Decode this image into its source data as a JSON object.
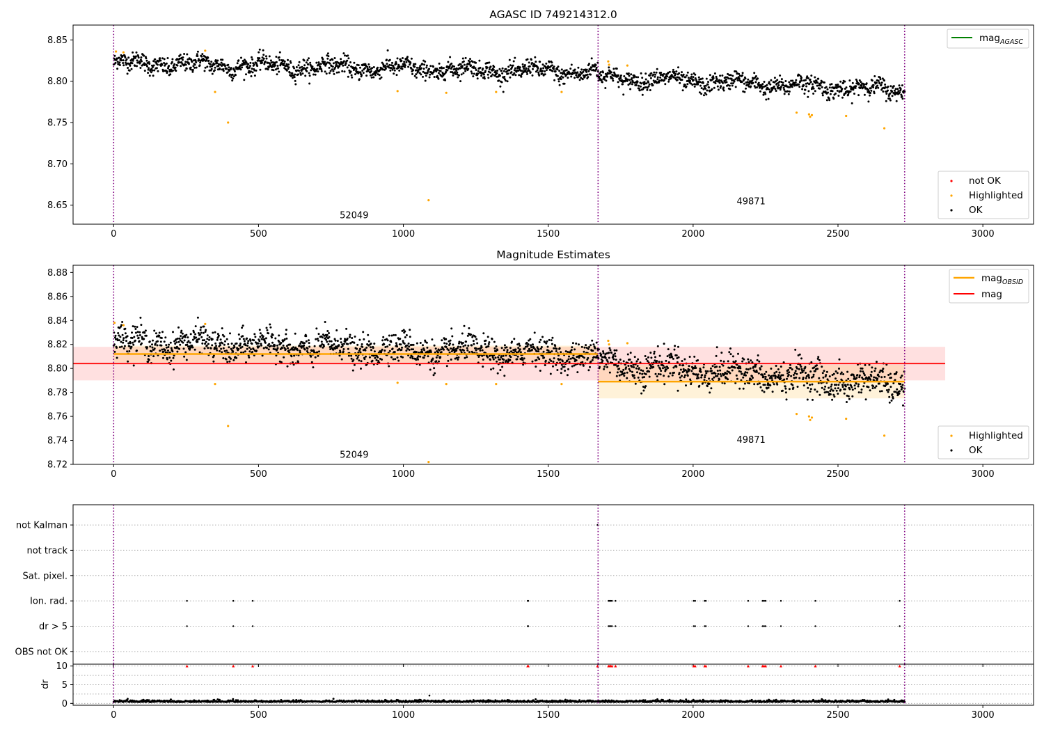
{
  "chart_data": [
    {
      "panel": "top",
      "type": "scatter",
      "title": "AGASC ID 749214312.0",
      "xlim": [
        -140,
        3175
      ],
      "ylim": [
        8.627,
        8.868
      ],
      "xticks": [
        0,
        500,
        1000,
        1500,
        2000,
        2500,
        3000
      ],
      "yticks": [
        8.65,
        8.7,
        8.75,
        8.8,
        8.85
      ],
      "ytick_labels": [
        "8.65",
        "8.70",
        "8.75",
        "8.80",
        "8.85"
      ],
      "obs_boundaries": [
        0,
        1672,
        2730
      ],
      "obs_labels": [
        {
          "text": "52049",
          "x": 830,
          "y": 8.634
        },
        {
          "text": "49871",
          "x": 2200,
          "y": 8.651
        }
      ],
      "legend_upper": [
        {
          "label": "mag",
          "sub": "AGASC",
          "color": "#008000"
        }
      ],
      "legend_lower": [
        {
          "label": "not OK",
          "color": "#ff0000"
        },
        {
          "label": "Highlighted",
          "color": "#ffa500"
        },
        {
          "label": "OK",
          "color": "#000000"
        }
      ],
      "series": [
        {
          "name": "OK",
          "segments": [
            {
              "x_start": 0,
              "x_end": 1672,
              "y_start": 8.822,
              "y_end": 8.811,
              "spread": 0.007,
              "count": 1300
            },
            {
              "x_start": 1672,
              "x_end": 2730,
              "y_start": 8.805,
              "y_end": 8.789,
              "spread": 0.007,
              "count": 800
            }
          ]
        },
        {
          "name": "Highlighted",
          "x": [
            8,
            34,
            316,
            350,
            395,
            980,
            1087,
            1148,
            1320,
            1546,
            1707,
            1710,
            1773,
            2357,
            2400,
            2404,
            2410,
            2528,
            2660
          ],
          "y": [
            8.836,
            8.835,
            8.837,
            8.787,
            8.75,
            8.788,
            8.656,
            8.786,
            8.787,
            8.787,
            8.824,
            8.82,
            8.819,
            8.762,
            8.76,
            8.757,
            8.759,
            8.758,
            8.743
          ]
        }
      ]
    },
    {
      "panel": "middle",
      "type": "scatter",
      "title": "Magnitude Estimates",
      "xlim": [
        -140,
        3175
      ],
      "ylim": [
        8.72,
        8.886
      ],
      "xticks": [
        0,
        500,
        1000,
        1500,
        2000,
        2500,
        3000
      ],
      "yticks": [
        8.72,
        8.74,
        8.76,
        8.78,
        8.8,
        8.82,
        8.84,
        8.86,
        8.88
      ],
      "ytick_labels": [
        "8.72",
        "8.74",
        "8.76",
        "8.78",
        "8.80",
        "8.82",
        "8.84",
        "8.86",
        "8.88"
      ],
      "obs_boundaries": [
        0,
        1672,
        2730
      ],
      "obs_labels": [
        {
          "text": "52049",
          "x": 830,
          "y": 8.7255
        },
        {
          "text": "49871",
          "x": 2200,
          "y": 8.738
        }
      ],
      "legend_upper": [
        {
          "label": "mag",
          "sub": "OBSID",
          "color": "#ffa500"
        },
        {
          "label": "mag",
          "sub": "",
          "color": "#ff0000"
        }
      ],
      "legend_lower": [
        {
          "label": "Highlighted",
          "color": "#ffa500"
        },
        {
          "label": "OK",
          "color": "#000000"
        }
      ],
      "mag": {
        "value": 8.804,
        "lo": 8.79,
        "hi": 8.818,
        "x_start": -140,
        "x_end": 2870
      },
      "mag_obsid": [
        {
          "x_start": 0,
          "x_end": 1672,
          "value": 8.812,
          "lo": 8.805,
          "hi": 8.819
        },
        {
          "x_start": 1672,
          "x_end": 2730,
          "value": 8.789,
          "lo": 8.775,
          "hi": 8.803
        }
      ],
      "series": [
        {
          "name": "OK",
          "segments": [
            {
              "x_start": 0,
              "x_end": 1672,
              "y_start": 8.822,
              "y_end": 8.811,
              "spread": 0.008,
              "count": 1300
            },
            {
              "x_start": 1672,
              "x_end": 2730,
              "y_start": 8.805,
              "y_end": 8.786,
              "spread": 0.009,
              "count": 800
            }
          ]
        },
        {
          "name": "Highlighted",
          "x": [
            3,
            34,
            316,
            350,
            395,
            980,
            1087,
            1148,
            1320,
            1546,
            1707,
            1710,
            1773,
            2357,
            2400,
            2404,
            2410,
            2528,
            2660
          ],
          "y": [
            8.838,
            8.836,
            8.837,
            8.787,
            8.752,
            8.788,
            8.722,
            8.787,
            8.787,
            8.787,
            8.823,
            8.82,
            8.821,
            8.762,
            8.76,
            8.757,
            8.759,
            8.758,
            8.744
          ]
        }
      ]
    },
    {
      "panel": "flags",
      "type": "scatter",
      "xlim": [
        -140,
        3175
      ],
      "ylim": [
        -0.5,
        5.8
      ],
      "xticks": [
        0,
        500,
        1000,
        1500,
        2000,
        2500,
        3000
      ],
      "categories": [
        "not Kalman",
        "not track",
        "Sat. pixel.",
        "Ion. rad.",
        "dr > 5",
        "OBS not OK"
      ],
      "obs_boundaries": [
        0,
        1672,
        2730
      ],
      "flag_points": [
        {
          "category": "not Kalman",
          "x": [
            1670
          ]
        },
        {
          "category": "Ion. rad.",
          "x": [
            253,
            413,
            480,
            1429,
            1431,
            1708,
            1712,
            1716,
            1720,
            1732,
            2002,
            2007,
            2040,
            2044,
            2190,
            2240,
            2245,
            2250,
            2303,
            2422,
            2713
          ]
        },
        {
          "category": "dr > 5",
          "x": [
            253,
            413,
            480,
            1429,
            1431,
            1708,
            1712,
            1716,
            1720,
            1732,
            2002,
            2007,
            2040,
            2044,
            2190,
            2240,
            2245,
            2250,
            2303,
            2422,
            2713
          ]
        }
      ]
    },
    {
      "panel": "dr",
      "type": "scatter",
      "xlim": [
        -140,
        3175
      ],
      "ylim": [
        -0.5,
        10.5
      ],
      "xticks": [
        0,
        500,
        1000,
        1500,
        2000,
        2500,
        3000
      ],
      "xtick_labels": [
        "0",
        "500",
        "1000",
        "1500",
        "2000",
        "2500",
        "3000"
      ],
      "yticks": [
        0,
        5,
        10
      ],
      "ytick_labels": [
        "0",
        "5",
        "10"
      ],
      "ylabel": "dr",
      "obs_boundaries": [
        0,
        1672,
        2730
      ],
      "dr_outliers": {
        "x": [
          253,
          413,
          480,
          1429,
          1431,
          1670,
          1708,
          1712,
          1716,
          1720,
          1732,
          2002,
          2007,
          2040,
          2044,
          2190,
          2240,
          2245,
          2250,
          2303,
          2422,
          2713
        ],
        "y": [
          10,
          10,
          10,
          10,
          10,
          10,
          10,
          10,
          10,
          10,
          10,
          10,
          10,
          10,
          10,
          10,
          10,
          10,
          10,
          10,
          10,
          10
        ]
      },
      "dr_baseline": {
        "x_start": 0,
        "x_end": 2730,
        "mean": 0.5,
        "spread": 0.3,
        "count": 1300,
        "extra_x": [
          1090
        ],
        "extra_y": [
          2.1
        ]
      }
    }
  ]
}
